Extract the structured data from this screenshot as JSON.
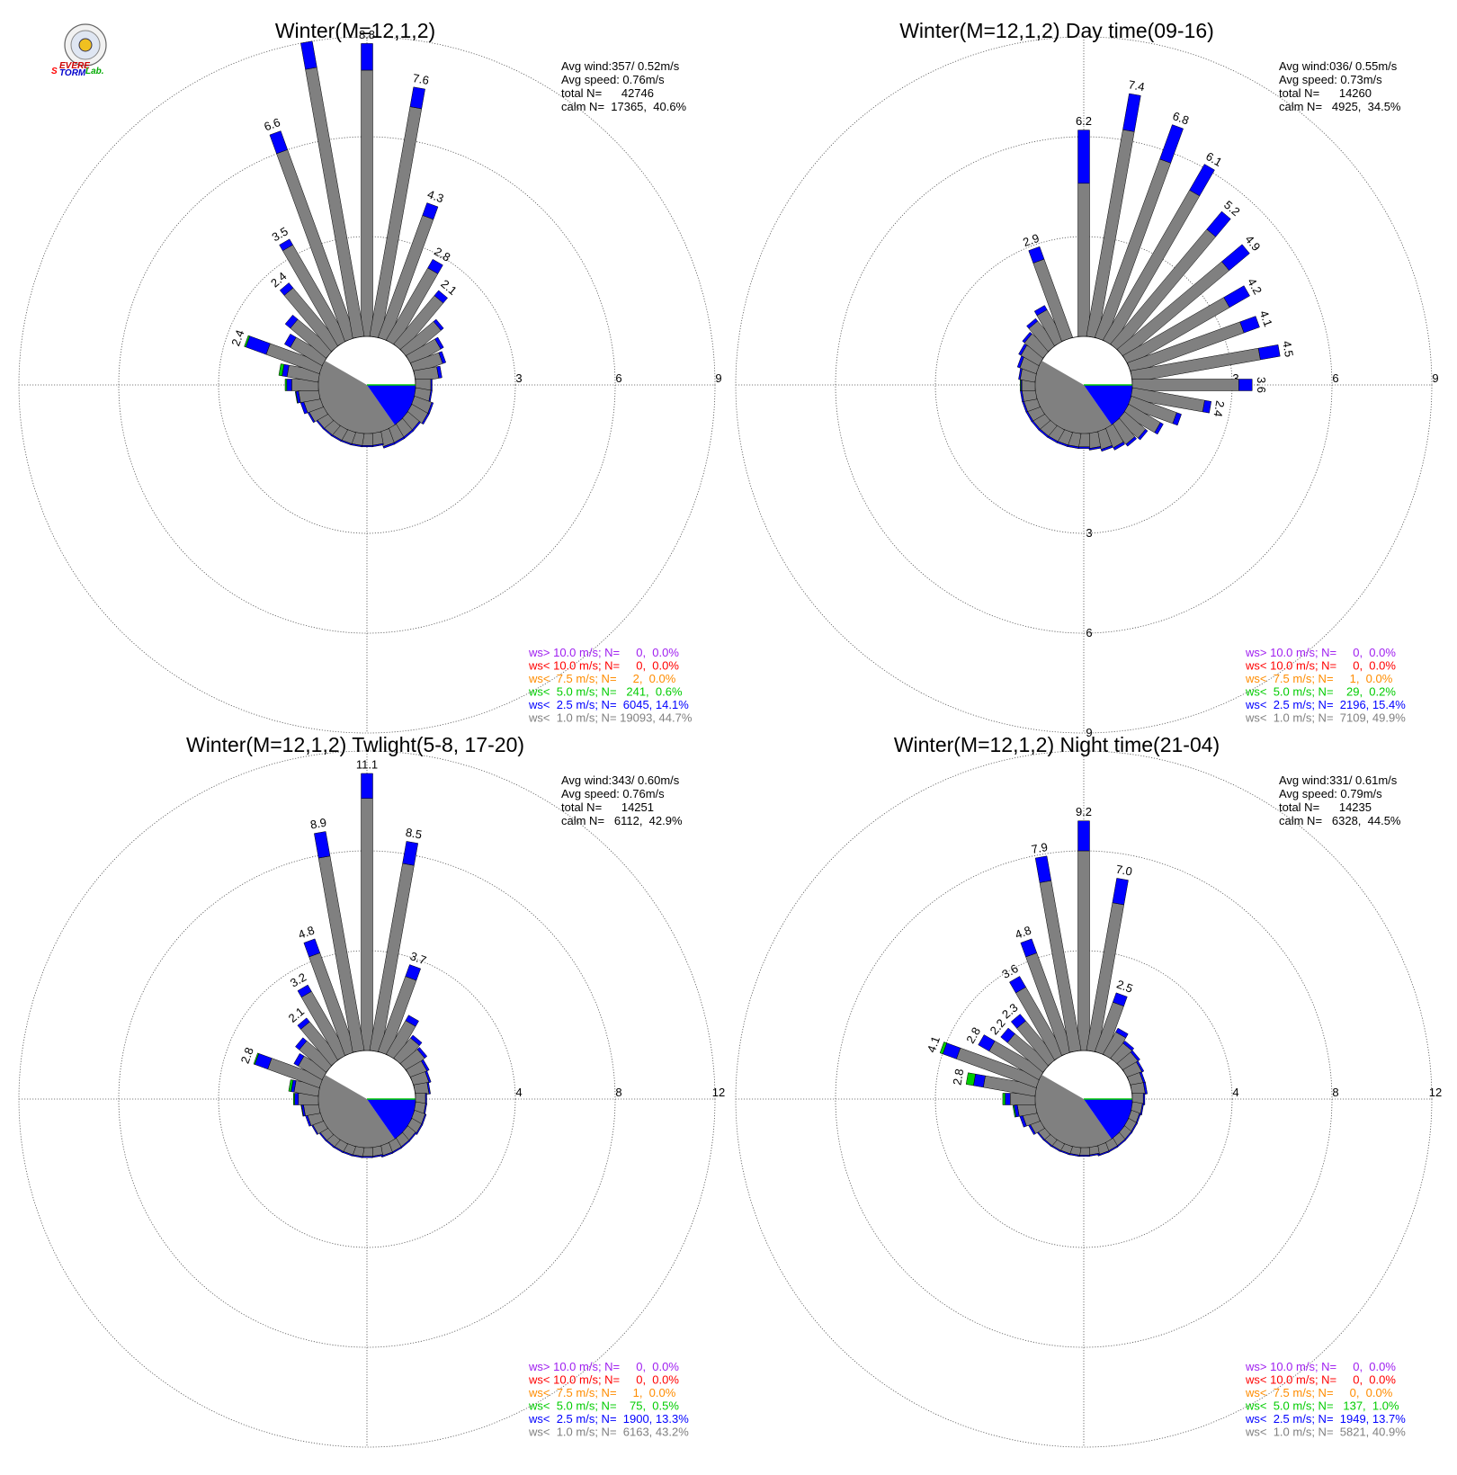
{
  "logo": {
    "text_a": "S",
    "text_b": "EVERE",
    "text_c": "TORM",
    "text_d": "Lab."
  },
  "colors": {
    "ws_gt10": "#a020f0",
    "ws_lt10": "#ff0000",
    "ws_lt7_5": "#ff8c00",
    "ws_lt5": "#00cc00",
    "ws_lt2_5": "#0000ff",
    "ws_lt1": "#808080"
  },
  "chart_data": [
    {
      "type": "wind-rose",
      "title": "Winter(M=12,1,2)",
      "stats": [
        "Avg wind:357/ 0.52m/s",
        "Avg speed: 0.76m/s",
        "total N=      42746",
        "calm N=  17365,  40.6%"
      ],
      "rmax": 9,
      "rings": [
        3,
        6,
        9
      ],
      "ring_labels": [
        "3",
        "6",
        "9"
      ],
      "vertical_ticks": false,
      "directions_deg": [
        0,
        10,
        20,
        30,
        40,
        50,
        60,
        70,
        80,
        90,
        100,
        110,
        120,
        130,
        140,
        150,
        160,
        170,
        180,
        190,
        200,
        210,
        220,
        230,
        240,
        250,
        260,
        270,
        280,
        290,
        300,
        310,
        320,
        330,
        340,
        350
      ],
      "totals": [
        8.8,
        7.6,
        4.3,
        2.8,
        2.1,
        1.4,
        1.1,
        1.0,
        0.8,
        0.5,
        0.5,
        0.6,
        0.6,
        0.5,
        0.5,
        0.5,
        0.5,
        0.4,
        0.4,
        0.4,
        0.4,
        0.4,
        0.4,
        0.4,
        0.5,
        0.6,
        0.7,
        1.0,
        1.2,
        2.4,
        1.3,
        1.6,
        2.4,
        3.5,
        6.6,
        9.0
      ],
      "grey": [
        8.0,
        7.0,
        3.9,
        2.5,
        1.9,
        1.3,
        1.0,
        0.9,
        0.7,
        0.46,
        0.46,
        0.55,
        0.55,
        0.45,
        0.45,
        0.45,
        0.45,
        0.36,
        0.36,
        0.36,
        0.36,
        0.36,
        0.36,
        0.36,
        0.45,
        0.5,
        0.6,
        0.8,
        0.95,
        1.7,
        1.1,
        1.4,
        2.2,
        3.3,
        6.0,
        8.2
      ],
      "green": [
        0,
        0,
        0,
        0,
        0,
        0,
        0,
        0,
        0,
        0,
        0,
        0,
        0,
        0,
        0,
        0,
        0,
        0,
        0,
        0,
        0,
        0,
        0,
        0,
        0,
        0,
        0.02,
        0.05,
        0.1,
        0.05,
        0,
        0,
        0,
        0,
        0,
        0
      ],
      "bar_labels": [
        {
          "i": 0,
          "text": "8.8"
        },
        {
          "i": 1,
          "text": "7.6"
        },
        {
          "i": 2,
          "text": "4.3"
        },
        {
          "i": 3,
          "text": "2.8"
        },
        {
          "i": 4,
          "text": "2.1"
        },
        {
          "i": 29,
          "text": "2.4"
        },
        {
          "i": 32,
          "text": "2.4"
        },
        {
          "i": 33,
          "text": "3.5"
        },
        {
          "i": 34,
          "text": "6.6"
        }
      ],
      "calm_wedge": {
        "blue_from": 90,
        "blue_to": 145
      },
      "legend": [
        {
          "text": "ws> 10.0 m/s; N=     0,  0.0%",
          "color": "ws_gt10"
        },
        {
          "text": "ws< 10.0 m/s; N=     0,  0.0%",
          "color": "ws_lt10"
        },
        {
          "text": "ws<  7.5 m/s; N=     2,  0.0%",
          "color": "ws_lt7_5"
        },
        {
          "text": "ws<  5.0 m/s; N=   241,  0.6%",
          "color": "ws_lt5"
        },
        {
          "text": "ws<  2.5 m/s; N=  6045, 14.1%",
          "color": "ws_lt2_5"
        },
        {
          "text": "ws<  1.0 m/s; N= 19093, 44.7%",
          "color": "ws_lt1"
        }
      ]
    },
    {
      "type": "wind-rose",
      "title": "Winter(M=12,1,2) Day time(09-16)",
      "stats": [
        "Avg wind:036/ 0.55m/s",
        "Avg speed: 0.73m/s",
        "total N=      14260",
        "calm N=   4925,  34.5%"
      ],
      "rmax": 9,
      "rings": [
        3,
        6,
        9
      ],
      "ring_labels": [
        "3",
        "6",
        "9"
      ],
      "vertical_ticks": true,
      "directions_deg": [
        0,
        10,
        20,
        30,
        40,
        50,
        60,
        70,
        80,
        90,
        100,
        110,
        120,
        130,
        140,
        150,
        160,
        170,
        180,
        190,
        200,
        210,
        220,
        230,
        240,
        250,
        260,
        270,
        280,
        290,
        300,
        310,
        320,
        330,
        340,
        350
      ],
      "totals": [
        6.2,
        7.4,
        6.8,
        6.1,
        5.2,
        4.9,
        4.2,
        4.1,
        4.5,
        3.6,
        2.4,
        1.6,
        1.2,
        0.9,
        0.8,
        0.7,
        0.6,
        0.5,
        0.45,
        0.45,
        0.45,
        0.45,
        0.45,
        0.45,
        0.45,
        0.45,
        0.45,
        0.45,
        0.5,
        0.6,
        0.7,
        0.8,
        1.0,
        1.2,
        2.9,
        0.0
      ],
      "grey": [
        4.6,
        6.3,
        5.7,
        5.2,
        4.5,
        4.1,
        3.5,
        3.6,
        3.9,
        3.2,
        2.2,
        1.45,
        1.1,
        0.82,
        0.72,
        0.62,
        0.54,
        0.45,
        0.4,
        0.4,
        0.4,
        0.4,
        0.4,
        0.4,
        0.4,
        0.4,
        0.4,
        0.4,
        0.45,
        0.52,
        0.62,
        0.72,
        0.9,
        1.05,
        2.5,
        0.0
      ],
      "green": [
        0,
        0,
        0,
        0,
        0,
        0,
        0,
        0,
        0,
        0,
        0,
        0,
        0,
        0,
        0,
        0,
        0,
        0,
        0,
        0,
        0,
        0,
        0,
        0,
        0,
        0,
        0,
        0.02,
        0,
        0,
        0,
        0,
        0,
        0,
        0,
        0
      ],
      "bar_labels": [
        {
          "i": 0,
          "text": "6.2"
        },
        {
          "i": 1,
          "text": "7.4"
        },
        {
          "i": 2,
          "text": "6.8"
        },
        {
          "i": 3,
          "text": "6.1"
        },
        {
          "i": 4,
          "text": "5.2"
        },
        {
          "i": 5,
          "text": "4.9"
        },
        {
          "i": 6,
          "text": "4.2"
        },
        {
          "i": 7,
          "text": "4.1"
        },
        {
          "i": 8,
          "text": "4.5"
        },
        {
          "i": 9,
          "text": "3.6"
        },
        {
          "i": 10,
          "text": "2.4"
        },
        {
          "i": 34,
          "text": "2.9"
        }
      ],
      "calm_wedge": {
        "blue_from": 90,
        "blue_to": 145
      },
      "legend": [
        {
          "text": "ws> 10.0 m/s; N=     0,  0.0%",
          "color": "ws_gt10"
        },
        {
          "text": "ws< 10.0 m/s; N=     0,  0.0%",
          "color": "ws_lt10"
        },
        {
          "text": "ws<  7.5 m/s; N=     1,  0.0%",
          "color": "ws_lt7_5"
        },
        {
          "text": "ws<  5.0 m/s; N=    29,  0.2%",
          "color": "ws_lt5"
        },
        {
          "text": "ws<  2.5 m/s; N=  2196, 15.4%",
          "color": "ws_lt2_5"
        },
        {
          "text": "ws<  1.0 m/s; N=  7109, 49.9%",
          "color": "ws_lt1"
        }
      ]
    },
    {
      "type": "wind-rose",
      "title": "Winter(M=12,1,2) Twlight(5-8, 17-20)",
      "stats": [
        "Avg wind:343/ 0.60m/s",
        "Avg speed: 0.76m/s",
        "total N=      14251",
        "calm N=   6112,  42.9%"
      ],
      "rmax": 12,
      "rings": [
        4,
        8,
        12
      ],
      "ring_labels": [
        "4",
        "8",
        "12"
      ],
      "vertical_ticks": false,
      "directions_deg": [
        0,
        10,
        20,
        30,
        40,
        50,
        60,
        70,
        80,
        90,
        100,
        110,
        120,
        130,
        140,
        150,
        160,
        170,
        180,
        190,
        200,
        210,
        220,
        230,
        240,
        250,
        260,
        270,
        280,
        290,
        300,
        310,
        320,
        330,
        340,
        350
      ],
      "totals": [
        11.1,
        8.5,
        3.7,
        1.8,
        1.2,
        1.0,
        0.8,
        0.7,
        0.6,
        0.45,
        0.45,
        0.5,
        0.5,
        0.45,
        0.45,
        0.45,
        0.45,
        0.4,
        0.4,
        0.4,
        0.4,
        0.4,
        0.4,
        0.4,
        0.5,
        0.6,
        0.7,
        1.0,
        1.2,
        2.8,
        1.3,
        1.6,
        2.1,
        3.2,
        4.8,
        8.9
      ],
      "grey": [
        10.1,
        7.6,
        3.2,
        1.55,
        1.05,
        0.88,
        0.7,
        0.62,
        0.54,
        0.4,
        0.4,
        0.45,
        0.45,
        0.4,
        0.4,
        0.4,
        0.4,
        0.35,
        0.35,
        0.35,
        0.35,
        0.35,
        0.35,
        0.35,
        0.45,
        0.52,
        0.6,
        0.8,
        0.98,
        2.2,
        1.1,
        1.4,
        1.9,
        2.9,
        4.2,
        7.9
      ],
      "green": [
        0,
        0,
        0,
        0,
        0,
        0,
        0,
        0,
        0,
        0,
        0,
        0,
        0,
        0,
        0,
        0,
        0,
        0,
        0,
        0,
        0,
        0,
        0,
        0,
        0,
        0,
        0.02,
        0.05,
        0.1,
        0.05,
        0,
        0,
        0,
        0,
        0,
        0
      ],
      "bar_labels": [
        {
          "i": 0,
          "text": "11.1"
        },
        {
          "i": 1,
          "text": "8.5"
        },
        {
          "i": 2,
          "text": "3.7"
        },
        {
          "i": 29,
          "text": "2.8"
        },
        {
          "i": 32,
          "text": "2.1"
        },
        {
          "i": 33,
          "text": "3.2"
        },
        {
          "i": 34,
          "text": "4.8"
        },
        {
          "i": 35,
          "text": "8.9"
        }
      ],
      "calm_wedge": {
        "blue_from": 90,
        "blue_to": 145
      },
      "legend": [
        {
          "text": "ws> 10.0 m/s; N=     0,  0.0%",
          "color": "ws_gt10"
        },
        {
          "text": "ws< 10.0 m/s; N=     0,  0.0%",
          "color": "ws_lt10"
        },
        {
          "text": "ws<  7.5 m/s; N=     1,  0.0%",
          "color": "ws_lt7_5"
        },
        {
          "text": "ws<  5.0 m/s; N=    75,  0.5%",
          "color": "ws_lt5"
        },
        {
          "text": "ws<  2.5 m/s; N=  1900, 13.3%",
          "color": "ws_lt2_5"
        },
        {
          "text": "ws<  1.0 m/s; N=  6163, 43.2%",
          "color": "ws_lt1"
        }
      ]
    },
    {
      "type": "wind-rose",
      "title": "Winter(M=12,1,2) Night time(21-04)",
      "stats": [
        "Avg wind:331/ 0.61m/s",
        "Avg speed: 0.79m/s",
        "total N=      14235",
        "calm N=   6328,  44.5%"
      ],
      "rmax": 12,
      "rings": [
        4,
        8,
        12
      ],
      "ring_labels": [
        "4",
        "8",
        "12"
      ],
      "vertical_ticks": false,
      "directions_deg": [
        0,
        10,
        20,
        30,
        40,
        50,
        60,
        70,
        80,
        90,
        100,
        110,
        120,
        130,
        140,
        150,
        160,
        170,
        180,
        190,
        200,
        210,
        220,
        230,
        240,
        250,
        260,
        270,
        280,
        290,
        300,
        310,
        320,
        330,
        340,
        350
      ],
      "totals": [
        9.2,
        7.0,
        2.5,
        1.2,
        0.9,
        0.8,
        0.7,
        0.6,
        0.6,
        0.5,
        0.45,
        0.4,
        0.4,
        0.4,
        0.4,
        0.4,
        0.4,
        0.35,
        0.35,
        0.35,
        0.35,
        0.35,
        0.35,
        0.35,
        0.5,
        0.7,
        0.9,
        1.3,
        2.8,
        4.1,
        2.8,
        2.2,
        2.3,
        3.6,
        4.8,
        7.9
      ],
      "grey": [
        8.0,
        6.0,
        2.1,
        1.02,
        0.78,
        0.7,
        0.62,
        0.52,
        0.52,
        0.44,
        0.4,
        0.35,
        0.35,
        0.35,
        0.35,
        0.35,
        0.35,
        0.3,
        0.3,
        0.3,
        0.3,
        0.3,
        0.3,
        0.3,
        0.42,
        0.58,
        0.72,
        1.0,
        2.1,
        3.4,
        2.3,
        1.85,
        1.95,
        3.1,
        4.2,
        6.9
      ],
      "green": [
        0,
        0,
        0,
        0,
        0,
        0,
        0,
        0,
        0,
        0,
        0,
        0,
        0,
        0,
        0,
        0,
        0,
        0,
        0,
        0,
        0,
        0,
        0,
        0,
        0,
        0,
        0.05,
        0.1,
        0.3,
        0.12,
        0,
        0,
        0,
        0,
        0,
        0
      ],
      "bar_labels": [
        {
          "i": 0,
          "text": "9.2"
        },
        {
          "i": 1,
          "text": "7.0"
        },
        {
          "i": 2,
          "text": "2.5"
        },
        {
          "i": 28,
          "text": "2.8"
        },
        {
          "i": 29,
          "text": "4.1"
        },
        {
          "i": 30,
          "text": "2.8"
        },
        {
          "i": 31,
          "text": "2.2"
        },
        {
          "i": 32,
          "text": "2.3"
        },
        {
          "i": 33,
          "text": "3.6"
        },
        {
          "i": 34,
          "text": "4.8"
        },
        {
          "i": 35,
          "text": "7.9"
        }
      ],
      "calm_wedge": {
        "blue_from": 90,
        "blue_to": 145
      },
      "legend": [
        {
          "text": "ws> 10.0 m/s; N=     0,  0.0%",
          "color": "ws_gt10"
        },
        {
          "text": "ws< 10.0 m/s; N=     0,  0.0%",
          "color": "ws_lt10"
        },
        {
          "text": "ws<  7.5 m/s; N=     0,  0.0%",
          "color": "ws_lt7_5"
        },
        {
          "text": "ws<  5.0 m/s; N=   137,  1.0%",
          "color": "ws_lt5"
        },
        {
          "text": "ws<  2.5 m/s; N=  1949, 13.7%",
          "color": "ws_lt2_5"
        },
        {
          "text": "ws<  1.0 m/s; N=  5821, 40.9%",
          "color": "ws_lt1"
        }
      ]
    }
  ]
}
